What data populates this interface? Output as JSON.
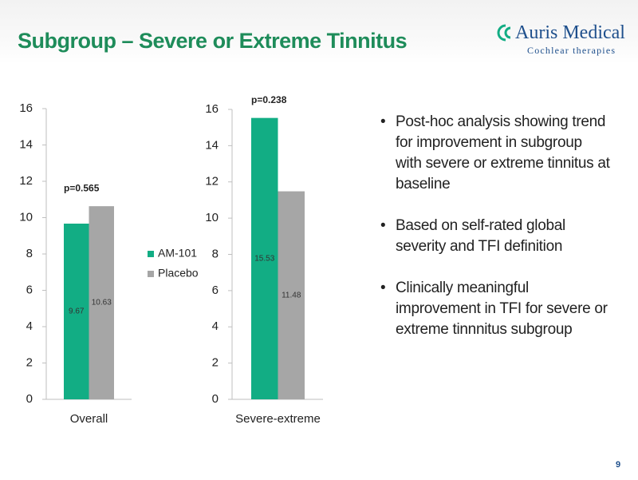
{
  "slide": {
    "title": "Subgroup – Severe or Extreme Tinnitus",
    "logo": {
      "name": "Auris Medical",
      "tagline": "Cochlear therapies"
    },
    "bullets": [
      "Post-hoc analysis showing trend for improvement in subgroup with severe or extreme tinnitus at baseline",
      "Based on self-rated global severity and TFI definition",
      "Clinically meaningful improvement in TFI for severe or extreme tinnnitus subgroup"
    ],
    "page_number": "9"
  },
  "chart_data": [
    {
      "type": "bar",
      "categories": [
        "Overall"
      ],
      "series": [
        {
          "name": "AM-101",
          "color": "#12ad84",
          "values": [
            9.67
          ]
        },
        {
          "name": "Placebo",
          "color": "#a6a6a6",
          "values": [
            10.63
          ]
        }
      ],
      "ylim": [
        0,
        16
      ],
      "yticks": [
        0,
        2,
        4,
        6,
        8,
        10,
        12,
        14,
        16
      ],
      "annotation": "p=0.565",
      "legend": true
    },
    {
      "type": "bar",
      "categories": [
        "Severe-extreme"
      ],
      "series": [
        {
          "color": "#12ad84",
          "values": [
            15.53
          ]
        },
        {
          "color": "#a6a6a6",
          "values": [
            11.48
          ]
        }
      ],
      "ylim": [
        0,
        16
      ],
      "yticks": [
        0,
        2,
        4,
        6,
        8,
        10,
        12,
        14,
        16
      ],
      "annotation": "p=0.238",
      "legend": false
    }
  ]
}
